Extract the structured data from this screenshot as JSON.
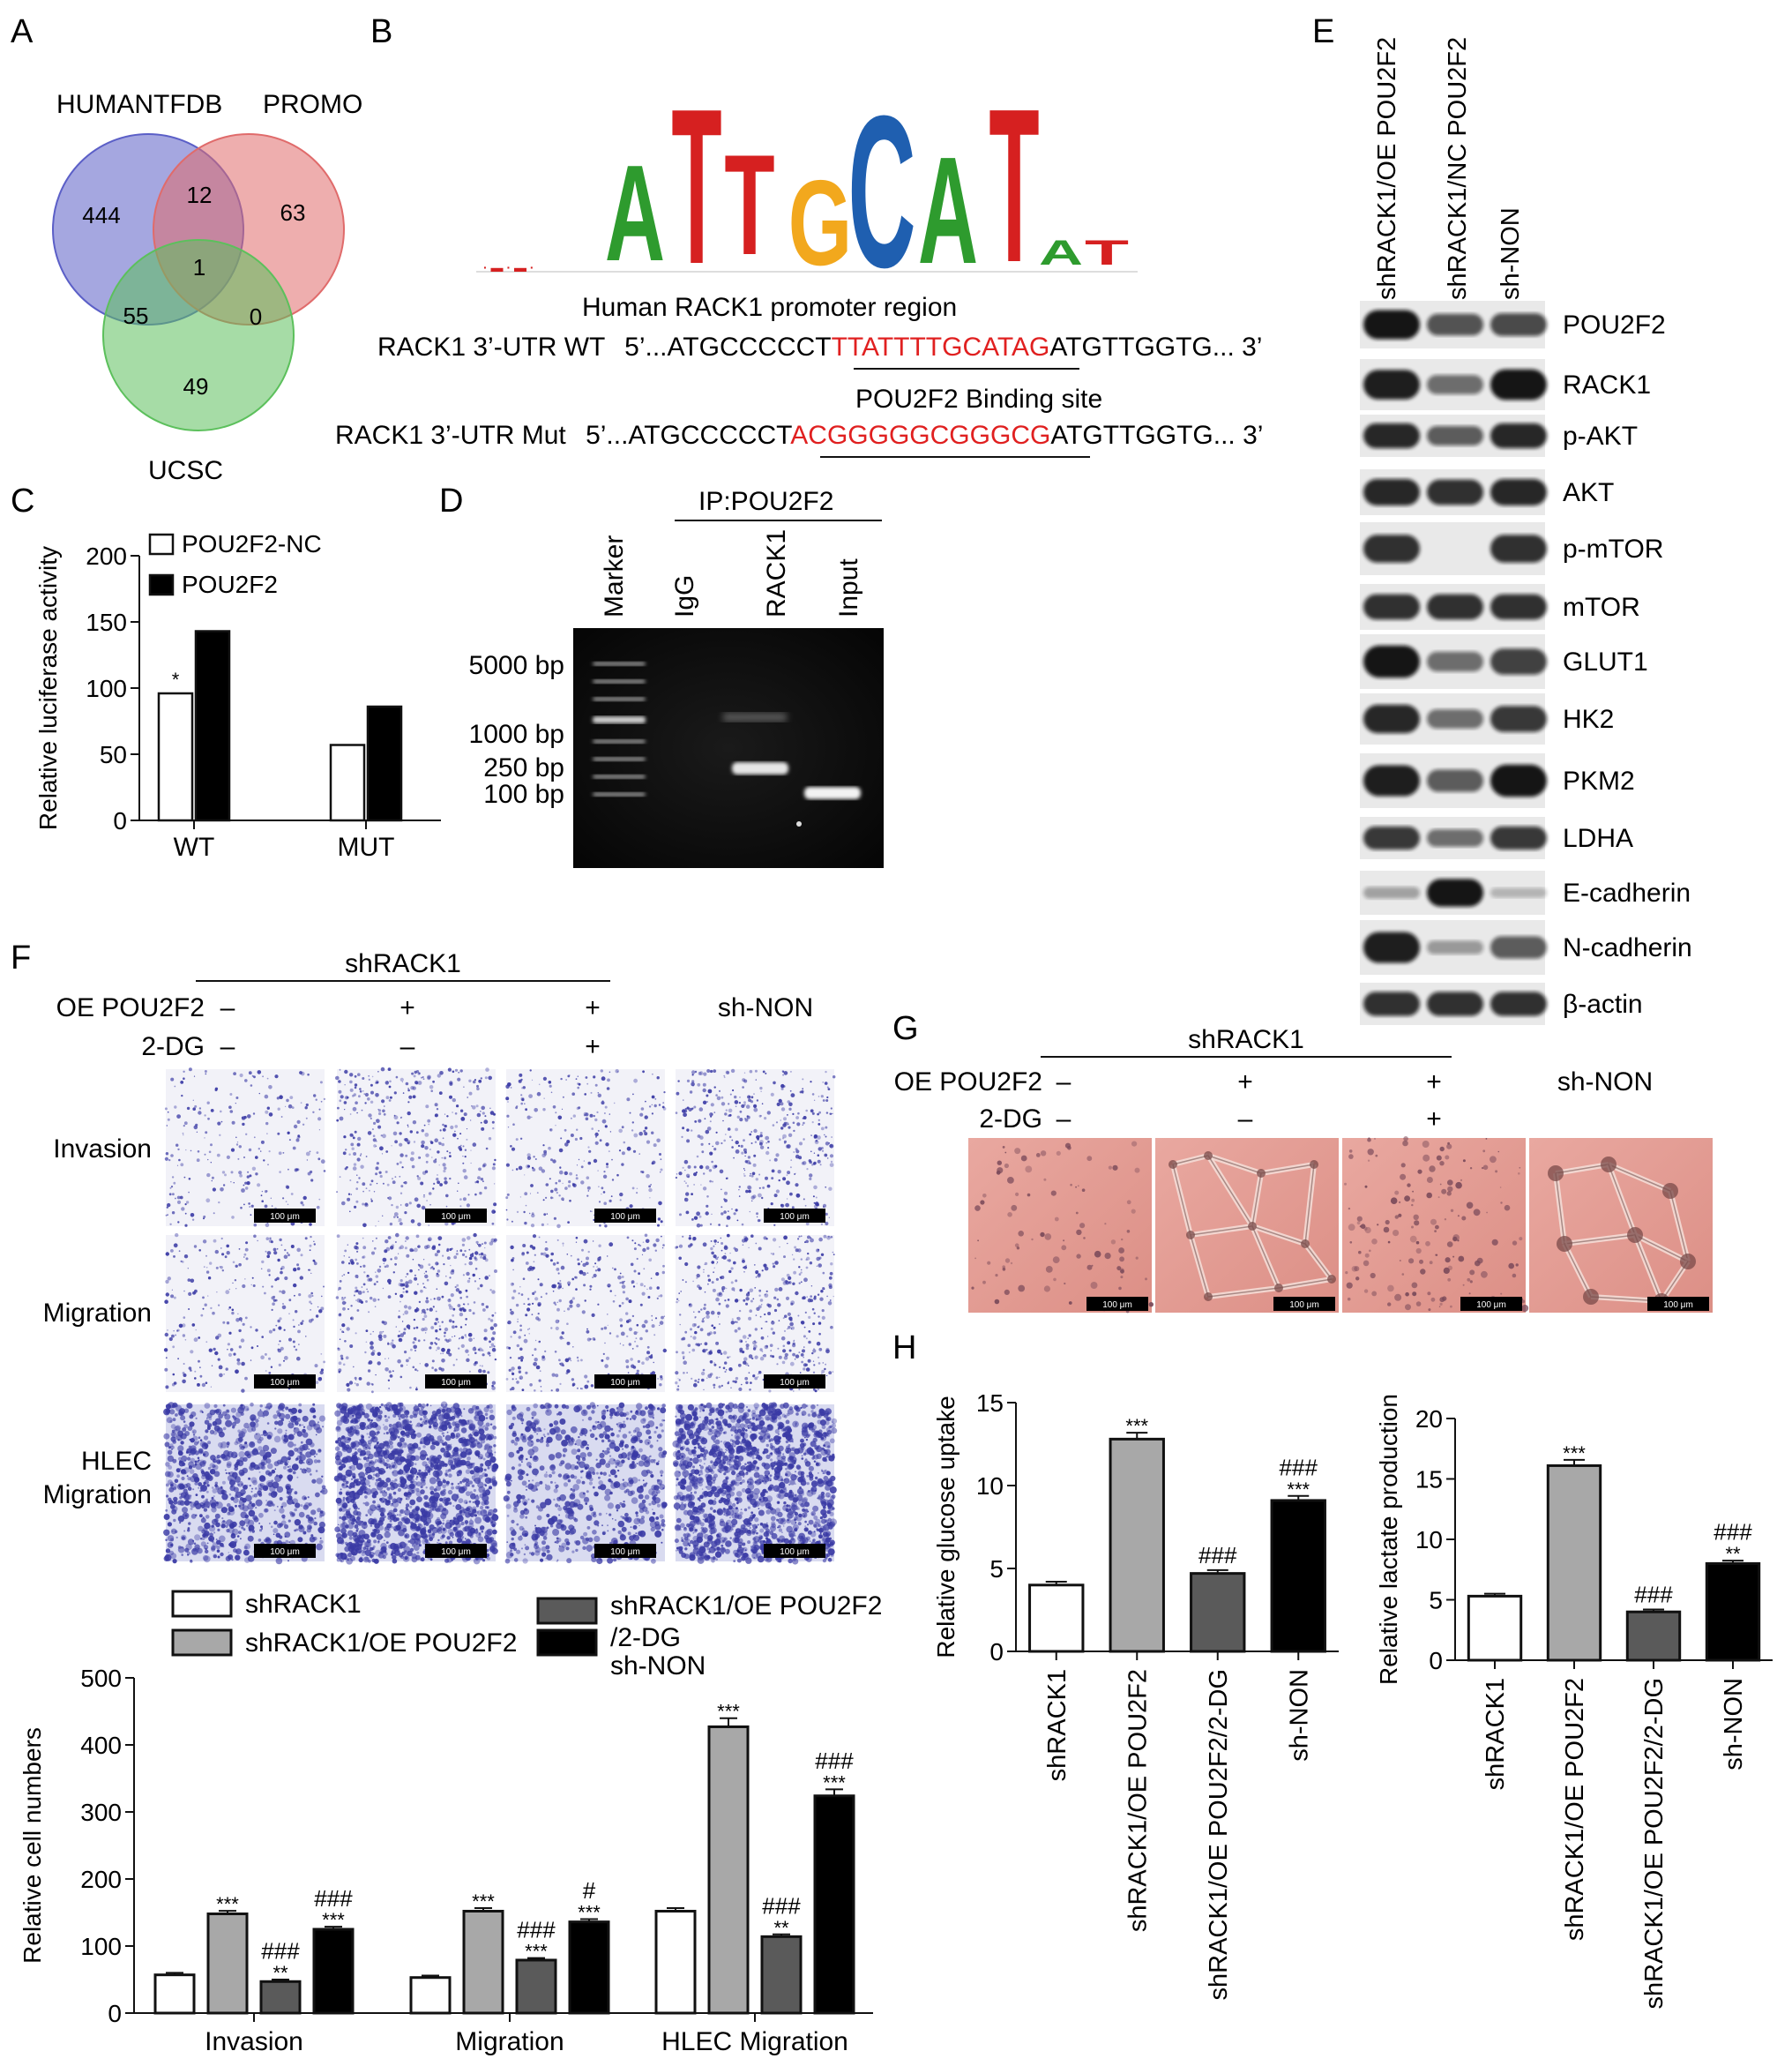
{
  "panels": [
    "A",
    "B",
    "C",
    "D",
    "E",
    "F",
    "G",
    "H"
  ],
  "venn": {
    "labels": {
      "humantfdb": "HUMANTFDB",
      "promo": "PROMO",
      "ucsc": "UCSC"
    },
    "counts": {
      "a_only": "444",
      "ab": "12",
      "b_only": "63",
      "abc": "1",
      "ac": "55",
      "bc": "0",
      "c_only": "49"
    },
    "colors": {
      "a": "#5b5fc7",
      "b": "#e06b6b",
      "c": "#5cc05c"
    }
  },
  "motif": {
    "letters": [
      "A",
      "T",
      "T",
      "G",
      "C",
      "A",
      "T"
    ],
    "colors": {
      "A": "#2e9b2e",
      "T": "#d62020",
      "G": "#f2a81d",
      "C": "#1f5fb0"
    },
    "promoter_title": "Human RACK1 promoter region",
    "wt_label": "RACK1 3’-UTR WT",
    "wt_pre": "5’...ATGCCCCCT",
    "wt_site": "TTATTTTGCATAG",
    "wt_post": "ATGTTGGTG... 3’",
    "binding_label": "POU2F2 Binding site",
    "mut_label": "RACK1 3’-UTR Mut",
    "mut_pre": "5’...ATGCCCCCT",
    "mut_site": "ACGGGGGCGGGCG",
    "mut_post": "ATGTTGGTG... 3’",
    "site_color": "#e02020"
  },
  "panel_c": {
    "chart_data": {
      "type": "bar",
      "categories": [
        "WT",
        "MUT"
      ],
      "series": [
        {
          "name": "POU2F2-NC",
          "values": [
            96,
            57
          ]
        },
        {
          "name": "POU2F2",
          "values": [
            143,
            86
          ]
        }
      ],
      "ylabel": "Relative luciferase activity",
      "ylim": [
        0,
        200
      ],
      "yticks": [
        "0",
        "50",
        "100",
        "150",
        "200"
      ],
      "annotations": [
        {
          "category": "WT",
          "series": "POU2F2-NC",
          "text": "*"
        }
      ]
    }
  },
  "panel_d": {
    "ip_label": "IP:POU2F2",
    "lanes": [
      "Marker",
      "IgG",
      "RACK1",
      "Input"
    ],
    "sizes": [
      "5000 bp",
      "1000 bp",
      "250 bp",
      "100 bp"
    ]
  },
  "panel_e": {
    "columns": [
      "shRACK1/OE POU2F2",
      "shRACK1/NC POU2F2",
      "sh-NON"
    ],
    "proteins": [
      "POU2F2",
      "RACK1",
      "p-AKT",
      "AKT",
      "p-mTOR",
      "mTOR",
      "GLUT1",
      "HK2",
      "PKM2",
      "LDHA",
      "E-cadherin",
      "N-cadherin",
      "β-actin"
    ],
    "band_levels": [
      [
        0.95,
        0.6,
        0.65
      ],
      [
        0.9,
        0.45,
        0.95
      ],
      [
        0.85,
        0.55,
        0.85
      ],
      [
        0.85,
        0.8,
        0.85
      ],
      [
        0.8,
        0.0,
        0.8
      ],
      [
        0.8,
        0.8,
        0.8
      ],
      [
        0.95,
        0.45,
        0.7
      ],
      [
        0.85,
        0.45,
        0.75
      ],
      [
        0.9,
        0.55,
        0.95
      ],
      [
        0.75,
        0.45,
        0.75
      ],
      [
        0.15,
        0.95,
        0.05
      ],
      [
        0.9,
        0.2,
        0.55
      ],
      [
        0.8,
        0.8,
        0.8
      ]
    ]
  },
  "panel_f": {
    "group_label": "shRACK1",
    "row_oe": "OE POU2F2",
    "row_dg": "2-DG",
    "oe_marks": [
      "–",
      "+",
      "+"
    ],
    "dg_marks": [
      "–",
      "–",
      "+"
    ],
    "shnon": "sh-NON",
    "row_labels": [
      "Invasion",
      "Migration",
      "HLEC",
      "Migration"
    ],
    "scale_bar": "100 μm",
    "chart_data": {
      "type": "bar",
      "categories": [
        "Invasion",
        "Migration",
        "HLEC Migration"
      ],
      "series": [
        {
          "name": "shRACK1",
          "values": [
            57,
            53,
            152
          ]
        },
        {
          "name": "shRACK1/OE POU2F2",
          "values": [
            148,
            152,
            427
          ]
        },
        {
          "name": "shRACK1/OE POU2F2 /2-DG",
          "values": [
            47,
            79,
            114
          ]
        },
        {
          "name": "sh-NON",
          "values": [
            125,
            136,
            324
          ]
        }
      ],
      "ylabel": "Relative cell numbers",
      "ylim": [
        0,
        500
      ],
      "yticks": [
        "0",
        "100",
        "200",
        "300",
        "400",
        "500"
      ],
      "sig_star": [
        "",
        "***",
        "**",
        "***",
        "",
        "***",
        "***",
        "***",
        "",
        "***",
        "**",
        "***"
      ],
      "sig_hash": [
        "",
        "",
        "###",
        "###",
        "",
        "",
        "###",
        "#",
        "",
        "",
        "###",
        "###"
      ]
    },
    "legend": [
      "shRACK1",
      "shRACK1/OE POU2F2",
      "shRACK1/OE POU2F2",
      "/2-DG",
      "sh-NON"
    ]
  },
  "panel_g": {
    "group_label": "shRACK1",
    "row_oe": "OE POU2F2",
    "row_dg": "2-DG",
    "oe_marks": [
      "–",
      "+",
      "+"
    ],
    "dg_marks": [
      "–",
      "–",
      "+"
    ],
    "shnon": "sh-NON",
    "scale_bar": "100 μm"
  },
  "panel_h": {
    "categories": [
      "shRACK1",
      "shRACK1/OE POU2F2",
      "shRACK1/OE POU2F2/2-DG",
      "sh-NON"
    ],
    "charts": [
      {
        "chart_data": {
          "type": "bar",
          "categories": [
            "shRACK1",
            "shRACK1/OE POU2F2",
            "shRACK1/OE POU2F2/2-DG",
            "sh-NON"
          ],
          "values": [
            4.0,
            12.8,
            4.7,
            9.1
          ],
          "ylabel": "Relative glucose uptake",
          "ylim": [
            0,
            15
          ],
          "yticks": [
            "0",
            "5",
            "10",
            "15"
          ],
          "sig_star": [
            "",
            "***",
            "",
            "***"
          ],
          "sig_hash": [
            "",
            "",
            "###",
            "###"
          ]
        }
      },
      {
        "chart_data": {
          "type": "bar",
          "categories": [
            "shRACK1",
            "shRACK1/OE POU2F2",
            "shRACK1/OE POU2F2/2-DG",
            "sh-NON"
          ],
          "values": [
            5.3,
            16.1,
            4.0,
            8.0
          ],
          "ylabel": "Relative lactate production",
          "ylim": [
            0,
            20
          ],
          "yticks": [
            "0",
            "5",
            "10",
            "15",
            "20"
          ],
          "sig_star": [
            "",
            "***",
            "",
            "**"
          ],
          "sig_hash": [
            "",
            "",
            "###",
            "###"
          ]
        }
      }
    ],
    "bar_colors": [
      "#ffffff",
      "#a8a8a8",
      "#5a5a5a",
      "#000000"
    ]
  },
  "bar_colors_f": [
    "#ffffff",
    "#a8a8a8",
    "#5a5a5a",
    "#000000"
  ]
}
